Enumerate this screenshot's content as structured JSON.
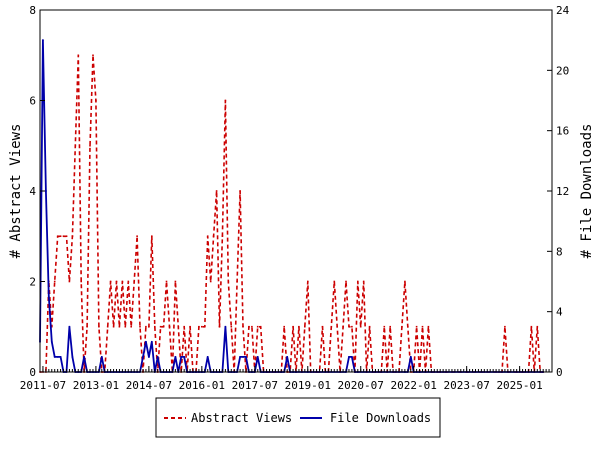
{
  "chart_data": {
    "type": "line",
    "title": "",
    "x_tick_labels": [
      "2011-07",
      "2013-01",
      "2014-07",
      "2016-01",
      "2017-07",
      "2019-01",
      "2020-07",
      "2022-01",
      "2023-07",
      "2025-01"
    ],
    "x_range": [
      "2011-06",
      "2025-12"
    ],
    "y_left": {
      "label": "# Abstract Views",
      "range": [
        0,
        8
      ],
      "ticks": [
        0,
        2,
        4,
        6,
        8
      ]
    },
    "y_right": {
      "label": "# File Downloads",
      "range": [
        0,
        24
      ],
      "ticks": [
        0,
        4,
        8,
        12,
        16,
        20,
        24
      ]
    },
    "legend_position": "bottom-center",
    "grid": false,
    "series": [
      {
        "name": "Abstract Views",
        "axis": "left",
        "color": "#cc0000",
        "dash": true,
        "points": [
          [
            "2011-06",
            0
          ],
          [
            "2011-08",
            0
          ],
          [
            "2011-09",
            2
          ],
          [
            "2011-10",
            1
          ],
          [
            "2011-11",
            2
          ],
          [
            "2011-12",
            3
          ],
          [
            "2012-01",
            3
          ],
          [
            "2012-02",
            3
          ],
          [
            "2012-03",
            3
          ],
          [
            "2012-04",
            2
          ],
          [
            "2012-05",
            3
          ],
          [
            "2012-06",
            5
          ],
          [
            "2012-07",
            7
          ],
          [
            "2012-08",
            2
          ],
          [
            "2012-09",
            0
          ],
          [
            "2012-10",
            1
          ],
          [
            "2012-11",
            5
          ],
          [
            "2012-12",
            7
          ],
          [
            "2013-01",
            6
          ],
          [
            "2013-02",
            1
          ],
          [
            "2013-03",
            0
          ],
          [
            "2013-04",
            0
          ],
          [
            "2013-05",
            1
          ],
          [
            "2013-06",
            2
          ],
          [
            "2013-07",
            1
          ],
          [
            "2013-08",
            2
          ],
          [
            "2013-09",
            1
          ],
          [
            "2013-10",
            2
          ],
          [
            "2013-11",
            1
          ],
          [
            "2013-12",
            2
          ],
          [
            "2014-01",
            1
          ],
          [
            "2014-02",
            2
          ],
          [
            "2014-03",
            3
          ],
          [
            "2014-04",
            1
          ],
          [
            "2014-05",
            0
          ],
          [
            "2014-06",
            1
          ],
          [
            "2014-07",
            1
          ],
          [
            "2014-08",
            3
          ],
          [
            "2014-09",
            1
          ],
          [
            "2014-10",
            0
          ],
          [
            "2014-11",
            1
          ],
          [
            "2014-12",
            1
          ],
          [
            "2015-01",
            2
          ],
          [
            "2015-02",
            1
          ],
          [
            "2015-03",
            0
          ],
          [
            "2015-04",
            2
          ],
          [
            "2015-05",
            1
          ],
          [
            "2015-06",
            0
          ],
          [
            "2015-07",
            1
          ],
          [
            "2015-08",
            0
          ],
          [
            "2015-09",
            1
          ],
          [
            "2015-10",
            0
          ],
          [
            "2015-11",
            0
          ],
          [
            "2015-12",
            1
          ],
          [
            "2016-01",
            1
          ],
          [
            "2016-02",
            1
          ],
          [
            "2016-03",
            3
          ],
          [
            "2016-04",
            2
          ],
          [
            "2016-05",
            3
          ],
          [
            "2016-06",
            4
          ],
          [
            "2016-07",
            1
          ],
          [
            "2016-08",
            3
          ],
          [
            "2016-09",
            6
          ],
          [
            "2016-10",
            2
          ],
          [
            "2016-11",
            1
          ],
          [
            "2016-12",
            0
          ],
          [
            "2017-01",
            2
          ],
          [
            "2017-02",
            4
          ],
          [
            "2017-03",
            1
          ],
          [
            "2017-04",
            0
          ],
          [
            "2017-05",
            1
          ],
          [
            "2017-06",
            1
          ],
          [
            "2017-07",
            0
          ],
          [
            "2017-08",
            1
          ],
          [
            "2017-09",
            1
          ],
          [
            "2017-10",
            0
          ],
          [
            "2017-11",
            0
          ],
          [
            "2017-12",
            0
          ],
          [
            "2018-01",
            0
          ],
          [
            "2018-02",
            0
          ],
          [
            "2018-03",
            0
          ],
          [
            "2018-04",
            0
          ],
          [
            "2018-05",
            1
          ],
          [
            "2018-06",
            0
          ],
          [
            "2018-07",
            0
          ],
          [
            "2018-08",
            1
          ],
          [
            "2018-09",
            0
          ],
          [
            "2018-10",
            1
          ],
          [
            "2018-11",
            0
          ],
          [
            "2018-12",
            1
          ],
          [
            "2019-01",
            2
          ],
          [
            "2019-02",
            0
          ],
          [
            "2019-03",
            0
          ],
          [
            "2019-04",
            0
          ],
          [
            "2019-05",
            0
          ],
          [
            "2019-06",
            1
          ],
          [
            "2019-07",
            0
          ],
          [
            "2019-08",
            0
          ],
          [
            "2019-09",
            1
          ],
          [
            "2019-10",
            2
          ],
          [
            "2019-11",
            1
          ],
          [
            "2019-12",
            0
          ],
          [
            "2020-01",
            1
          ],
          [
            "2020-02",
            2
          ],
          [
            "2020-03",
            1
          ],
          [
            "2020-04",
            1
          ],
          [
            "2020-05",
            0
          ],
          [
            "2020-06",
            2
          ],
          [
            "2020-07",
            1
          ],
          [
            "2020-08",
            2
          ],
          [
            "2020-09",
            0
          ],
          [
            "2020-10",
            1
          ],
          [
            "2020-11",
            0
          ],
          [
            "2020-12",
            0
          ],
          [
            "2021-01",
            0
          ],
          [
            "2021-02",
            0
          ],
          [
            "2021-03",
            1
          ],
          [
            "2021-04",
            0
          ],
          [
            "2021-05",
            1
          ],
          [
            "2021-06",
            0
          ],
          [
            "2021-07",
            0
          ],
          [
            "2021-08",
            0
          ],
          [
            "2021-09",
            1
          ],
          [
            "2021-10",
            2
          ],
          [
            "2021-11",
            1
          ],
          [
            "2021-12",
            0
          ],
          [
            "2022-01",
            0
          ],
          [
            "2022-02",
            1
          ],
          [
            "2022-03",
            0
          ],
          [
            "2022-04",
            1
          ],
          [
            "2022-05",
            0
          ],
          [
            "2022-06",
            1
          ],
          [
            "2022-07",
            0
          ],
          [
            "2022-08",
            0
          ],
          [
            "2022-09",
            0
          ],
          [
            "2022-10",
            0
          ],
          [
            "2022-11",
            0
          ],
          [
            "2022-12",
            0
          ],
          [
            "2023-07",
            0
          ],
          [
            "2024-01",
            0
          ],
          [
            "2024-06",
            0
          ],
          [
            "2024-07",
            0
          ],
          [
            "2024-08",
            1
          ],
          [
            "2024-09",
            0
          ],
          [
            "2024-12",
            0
          ],
          [
            "2025-01",
            0
          ],
          [
            "2025-02",
            0
          ],
          [
            "2025-03",
            0
          ],
          [
            "2025-04",
            0
          ],
          [
            "2025-05",
            1
          ],
          [
            "2025-06",
            0
          ],
          [
            "2025-07",
            1
          ],
          [
            "2025-08",
            0
          ],
          [
            "2025-09",
            0
          ]
        ]
      },
      {
        "name": "File Downloads",
        "axis": "right",
        "color": "#0000aa",
        "dash": false,
        "points": [
          [
            "2011-06",
            2
          ],
          [
            "2011-07",
            22
          ],
          [
            "2011-08",
            12
          ],
          [
            "2011-09",
            5
          ],
          [
            "2011-10",
            2
          ],
          [
            "2011-11",
            1
          ],
          [
            "2011-12",
            1
          ],
          [
            "2012-01",
            1
          ],
          [
            "2012-02",
            0
          ],
          [
            "2012-03",
            0
          ],
          [
            "2012-04",
            3
          ],
          [
            "2012-05",
            1
          ],
          [
            "2012-06",
            0
          ],
          [
            "2012-07",
            0
          ],
          [
            "2012-08",
            0
          ],
          [
            "2012-09",
            1
          ],
          [
            "2012-10",
            0
          ],
          [
            "2012-11",
            0
          ],
          [
            "2012-12",
            0
          ],
          [
            "2013-01",
            0
          ],
          [
            "2013-02",
            0
          ],
          [
            "2013-03",
            1
          ],
          [
            "2013-04",
            0
          ],
          [
            "2013-05",
            0
          ],
          [
            "2013-06",
            0
          ],
          [
            "2013-07",
            0
          ],
          [
            "2013-08",
            0
          ],
          [
            "2013-09",
            0
          ],
          [
            "2013-10",
            0
          ],
          [
            "2013-11",
            0
          ],
          [
            "2013-12",
            0
          ],
          [
            "2014-01",
            0
          ],
          [
            "2014-02",
            0
          ],
          [
            "2014-03",
            0
          ],
          [
            "2014-04",
            0
          ],
          [
            "2014-05",
            1
          ],
          [
            "2014-06",
            2
          ],
          [
            "2014-07",
            1
          ],
          [
            "2014-08",
            2
          ],
          [
            "2014-09",
            0
          ],
          [
            "2014-10",
            1
          ],
          [
            "2014-11",
            0
          ],
          [
            "2014-12",
            0
          ],
          [
            "2015-01",
            0
          ],
          [
            "2015-02",
            0
          ],
          [
            "2015-03",
            0
          ],
          [
            "2015-04",
            1
          ],
          [
            "2015-05",
            0
          ],
          [
            "2015-06",
            1
          ],
          [
            "2015-07",
            1
          ],
          [
            "2015-08",
            0
          ],
          [
            "2015-09",
            0
          ],
          [
            "2015-10",
            0
          ],
          [
            "2015-11",
            0
          ],
          [
            "2015-12",
            0
          ],
          [
            "2016-01",
            0
          ],
          [
            "2016-02",
            0
          ],
          [
            "2016-03",
            1
          ],
          [
            "2016-04",
            0
          ],
          [
            "2016-05",
            0
          ],
          [
            "2016-06",
            0
          ],
          [
            "2016-07",
            0
          ],
          [
            "2016-08",
            0
          ],
          [
            "2016-09",
            3
          ],
          [
            "2016-10",
            0
          ],
          [
            "2016-11",
            0
          ],
          [
            "2016-12",
            0
          ],
          [
            "2017-01",
            0
          ],
          [
            "2017-02",
            1
          ],
          [
            "2017-03",
            1
          ],
          [
            "2017-04",
            1
          ],
          [
            "2017-05",
            0
          ],
          [
            "2017-06",
            0
          ],
          [
            "2017-07",
            0
          ],
          [
            "2017-08",
            1
          ],
          [
            "2017-09",
            0
          ],
          [
            "2017-10",
            0
          ],
          [
            "2017-11",
            0
          ],
          [
            "2018-04",
            0
          ],
          [
            "2018-05",
            0
          ],
          [
            "2018-06",
            1
          ],
          [
            "2018-07",
            0
          ],
          [
            "2018-08",
            0
          ],
          [
            "2018-09",
            0
          ],
          [
            "2019-01",
            0
          ],
          [
            "2020-02",
            0
          ],
          [
            "2020-03",
            1
          ],
          [
            "2020-04",
            1
          ],
          [
            "2020-05",
            0
          ],
          [
            "2020-06",
            0
          ],
          [
            "2021-10",
            0
          ],
          [
            "2021-11",
            0
          ],
          [
            "2021-12",
            1
          ],
          [
            "2022-01",
            0
          ],
          [
            "2022-02",
            0
          ],
          [
            "2022-03",
            0
          ],
          [
            "2025-09",
            0
          ]
        ]
      }
    ]
  }
}
